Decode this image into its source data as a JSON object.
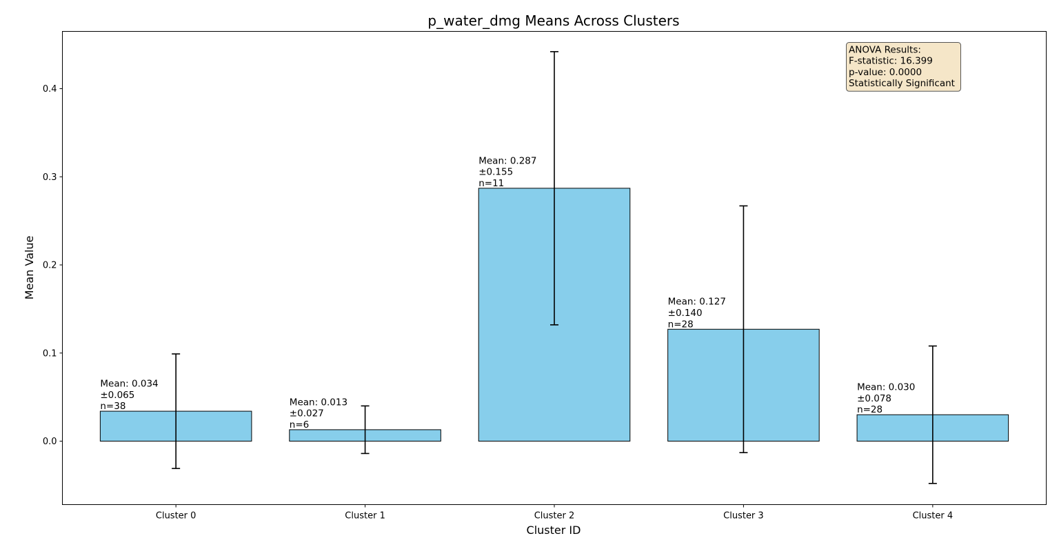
{
  "chart_data": {
    "type": "bar",
    "title": "p_water_dmg Means Across Clusters",
    "xlabel": "Cluster ID",
    "ylabel": "Mean Value",
    "categories": [
      "Cluster 0",
      "Cluster 1",
      "Cluster 2",
      "Cluster 3",
      "Cluster 4"
    ],
    "values": [
      0.034,
      0.013,
      0.287,
      0.127,
      0.03
    ],
    "errors": [
      0.065,
      0.027,
      0.155,
      0.14,
      0.078
    ],
    "counts": [
      38,
      6,
      11,
      28,
      28
    ],
    "bar_labels": [
      [
        "Mean: 0.034",
        "±0.065",
        "n=38"
      ],
      [
        "Mean: 0.013",
        "±0.027",
        "n=6"
      ],
      [
        "Mean: 0.287",
        "±0.155",
        "n=11"
      ],
      [
        "Mean: 0.127",
        "±0.140",
        "n=28"
      ],
      [
        "Mean: 0.030",
        "±0.078",
        "n=28"
      ]
    ],
    "ylim": [
      -0.072,
      0.465
    ],
    "yticks": [
      0.0,
      0.1,
      0.2,
      0.3,
      0.4
    ],
    "ytick_labels": [
      "0.0",
      "0.1",
      "0.2",
      "0.3",
      "0.4"
    ],
    "grid": false,
    "bar_color": "#87CEEB",
    "bar_edge_color": "#000000",
    "annotation": {
      "lines": [
        "ANOVA Results:",
        "F-statistic: 16.399",
        "p-value: 0.0000",
        "Statistically Significant"
      ],
      "box_color": "#F5E6C8",
      "placement": "top-right"
    }
  }
}
